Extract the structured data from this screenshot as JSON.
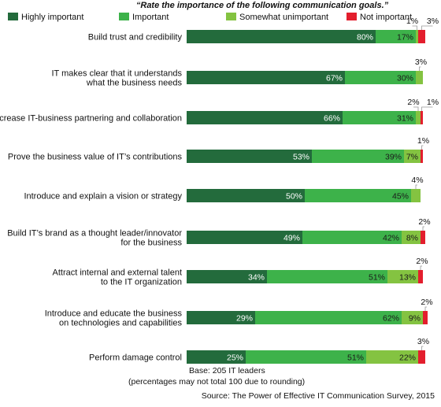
{
  "chart_data": {
    "type": "bar",
    "orientation": "horizontal",
    "stacked": true,
    "title": "“Rate the importance of the following communication goals.”",
    "xlim": [
      0,
      100
    ],
    "legend_position": "top",
    "categories": [
      [
        "Build trust and credibility"
      ],
      [
        "IT makes clear that it understands",
        "what the business needs"
      ],
      [
        "Increase IT-business partnering and collaboration"
      ],
      [
        "Prove the business value of IT’s contributions"
      ],
      [
        "Introduce and explain a vision or strategy"
      ],
      [
        "Build IT’s brand as a thought leader/innovator",
        "for the business"
      ],
      [
        "Attract internal and external talent",
        "to the IT organization"
      ],
      [
        "Introduce and educate the business",
        "on technologies and capabilities"
      ],
      [
        "Perform damage control"
      ]
    ],
    "series": [
      {
        "name": "Highly important",
        "color": "#236b3c",
        "values": [
          80,
          67,
          66,
          53,
          50,
          49,
          34,
          29,
          25
        ]
      },
      {
        "name": "Important",
        "color": "#3db24a",
        "values": [
          17,
          30,
          31,
          39,
          45,
          42,
          51,
          62,
          51
        ]
      },
      {
        "name": "Somewhat unimportant",
        "color": "#84c341",
        "values": [
          1,
          3,
          2,
          7,
          4,
          8,
          13,
          9,
          22
        ]
      },
      {
        "name": "Not important",
        "color": "#e31e2d",
        "values": [
          3,
          0,
          1,
          1,
          0,
          2,
          2,
          2,
          3
        ]
      }
    ],
    "inside_labels": [
      [
        "80%",
        "17%",
        null,
        null
      ],
      [
        "67%",
        "30%",
        null,
        null
      ],
      [
        "66%",
        "31%",
        null,
        null
      ],
      [
        "53%",
        "39%",
        "7%",
        null
      ],
      [
        "50%",
        "45%",
        null,
        null
      ],
      [
        "49%",
        "42%",
        "8%",
        null
      ],
      [
        "34%",
        "51%",
        "13%",
        null
      ],
      [
        "29%",
        "62%",
        "9%",
        null
      ],
      [
        "25%",
        "51%",
        "22%",
        null
      ]
    ],
    "callouts": [
      [
        {
          "seg": 2,
          "text": "1%"
        },
        {
          "seg": 3,
          "text": "3%"
        }
      ],
      [
        {
          "seg": 2,
          "text": "3%"
        }
      ],
      [
        {
          "seg": 2,
          "text": "2%"
        },
        {
          "seg": 3,
          "text": "1%"
        }
      ],
      [
        {
          "seg": 3,
          "text": "1%"
        }
      ],
      [
        {
          "seg": 2,
          "text": "4%"
        }
      ],
      [
        {
          "seg": 3,
          "text": "2%"
        }
      ],
      [
        {
          "seg": 3,
          "text": "2%"
        }
      ],
      [
        {
          "seg": 3,
          "text": "2%"
        }
      ],
      [
        {
          "seg": 3,
          "text": "3%"
        }
      ]
    ]
  },
  "footnote": {
    "base": "Base: 205 IT leaders",
    "rounding_note": "(percentages may not total 100 due to rounding)",
    "source": "Source: The Power of Effective IT Communication Survey, 2015"
  }
}
